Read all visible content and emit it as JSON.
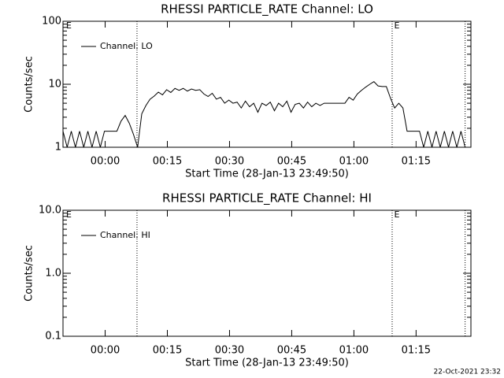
{
  "chart_data": [
    {
      "type": "line",
      "title": "RHESSI PARTICLE_RATE Channel: LO",
      "ylabel": "Counts/sec",
      "xlabel": "Start Time (28-Jan-13 23:49:50)",
      "log_y": true,
      "ylim": [
        1,
        100
      ],
      "yticks": [
        1,
        10,
        100
      ],
      "xlim": [
        0,
        98.4
      ],
      "xticks": [
        {
          "value": 10.17,
          "label": "00:00"
        },
        {
          "value": 25.17,
          "label": "00:15"
        },
        {
          "value": 40.17,
          "label": "00:30"
        },
        {
          "value": 55.17,
          "label": "00:45"
        },
        {
          "value": 70.17,
          "label": "01:00"
        },
        {
          "value": 85.17,
          "label": "01:15"
        }
      ],
      "vlines": [
        17.85,
        79.4,
        97.0
      ],
      "annotations": [
        {
          "text": "E",
          "x": 0.57
        },
        {
          "text": "E",
          "x": 79.7
        }
      ],
      "legend": "upper left",
      "x": [
        0,
        1,
        2,
        3,
        4,
        5,
        6,
        7,
        8,
        9,
        10,
        11,
        12,
        13,
        14,
        15,
        16,
        17,
        18,
        19,
        20,
        21,
        22,
        23,
        24,
        25,
        26,
        27,
        28,
        29,
        30,
        31,
        32,
        33,
        34,
        35,
        36,
        37,
        38,
        39,
        40,
        41,
        42,
        43,
        44,
        45,
        46,
        47,
        48,
        49,
        50,
        51,
        52,
        53,
        54,
        55,
        56,
        57,
        58,
        59,
        60,
        61,
        62,
        63,
        64,
        65,
        66,
        67,
        68,
        69,
        70,
        71,
        72,
        73,
        74,
        75,
        76,
        77,
        78,
        79,
        80,
        81,
        82,
        83,
        84,
        85,
        86,
        87,
        88,
        89,
        90,
        91,
        92,
        93,
        94,
        95,
        96,
        97
      ],
      "series": [
        {
          "name": "Channel: LO",
          "color": "#000000",
          "values": [
            1.8,
            1,
            1.8,
            1,
            1.8,
            1,
            1.8,
            1,
            1.8,
            1,
            1.8,
            1.8,
            1.8,
            1.8,
            2.6,
            3.2,
            2.4,
            1.6,
            1,
            3.4,
            4.6,
            5.8,
            6.5,
            7.5,
            6.8,
            8.2,
            7.4,
            8.6,
            8.0,
            8.6,
            7.8,
            8.4,
            8.0,
            8.2,
            7.0,
            6.4,
            7.2,
            5.8,
            6.2,
            5.0,
            5.6,
            5.0,
            5.2,
            4.2,
            5.4,
            4.4,
            5.0,
            3.6,
            5.0,
            4.6,
            5.2,
            3.8,
            5.0,
            4.4,
            5.4,
            3.6,
            4.8,
            5.0,
            4.2,
            5.2,
            4.4,
            5.0,
            4.6,
            5.0,
            5.0,
            5.0,
            5.0,
            5.0,
            5.0,
            6.2,
            5.6,
            7.0,
            8.0,
            9.0,
            10.0,
            11.0,
            9.4,
            9.2,
            9.2,
            6.0,
            4.2,
            5.0,
            4.2,
            1.8,
            1.8,
            1.8,
            1.8,
            1,
            1.8,
            1,
            1.8,
            1,
            1.8,
            1,
            1.8,
            1,
            1.8,
            1
          ]
        }
      ]
    },
    {
      "type": "line",
      "title": "RHESSI PARTICLE_RATE Channel: HI",
      "ylabel": "Counts/sec",
      "xlabel": "Start Time (28-Jan-13 23:49:50)",
      "log_y": true,
      "ylim": [
        0.1,
        10
      ],
      "yticks": [
        0.1,
        {
          "value": 1,
          "label": "1.0"
        },
        {
          "value": 10,
          "label": "10.0"
        }
      ],
      "xlim": [
        0,
        98.4
      ],
      "xticks": [
        {
          "value": 10.17,
          "label": "00:00"
        },
        {
          "value": 25.17,
          "label": "00:15"
        },
        {
          "value": 40.17,
          "label": "00:30"
        },
        {
          "value": 55.17,
          "label": "00:45"
        },
        {
          "value": 70.17,
          "label": "01:00"
        },
        {
          "value": 85.17,
          "label": "01:15"
        }
      ],
      "vlines": [
        17.85,
        79.4,
        97.0
      ],
      "annotations": [
        {
          "text": "E",
          "x": 0.57
        },
        {
          "text": "E",
          "x": 79.7
        }
      ],
      "legend": "upper left",
      "x": [],
      "series": [
        {
          "name": "Channel: HI",
          "color": "#000000",
          "values": []
        }
      ]
    }
  ],
  "footer": "22-Oct-2021 23:32"
}
